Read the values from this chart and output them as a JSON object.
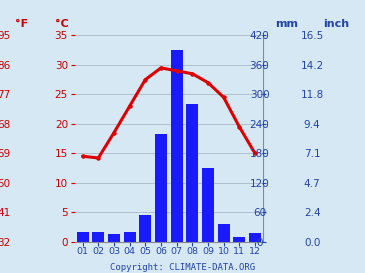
{
  "months": [
    "01",
    "02",
    "03",
    "04",
    "05",
    "06",
    "07",
    "08",
    "09",
    "10",
    "11",
    "12"
  ],
  "precip_mm": [
    20,
    20,
    15,
    20,
    55,
    220,
    390,
    280,
    150,
    35,
    10,
    18
  ],
  "temp_c": [
    14.5,
    14.2,
    18.5,
    23.0,
    27.5,
    29.5,
    29.0,
    28.5,
    27.0,
    24.5,
    19.5,
    15.0
  ],
  "bar_color": "#1a1aff",
  "line_color": "#dd0000",
  "temp_ticks_c": [
    0,
    5,
    10,
    15,
    20,
    25,
    30,
    35
  ],
  "temp_ticks_f": [
    32,
    41,
    50,
    59,
    68,
    77,
    86,
    95
  ],
  "precip_ticks_mm": [
    0,
    60,
    120,
    180,
    240,
    300,
    360,
    420
  ],
  "precip_ticks_inch": [
    "0.0",
    "2.4",
    "4.7",
    "7.1",
    "9.4",
    "11.8",
    "14.2",
    "16.5"
  ],
  "ylim_c": [
    0,
    35
  ],
  "ylim_mm": [
    0,
    420
  ],
  "label_f": "°F",
  "label_c": "°C",
  "label_mm": "mm",
  "label_inch": "inch",
  "copyright": "Copyright: CLIMATE-DATA.ORG",
  "bg_color": "#d5e8f3",
  "grid_color": "#b0bfd0",
  "red": "#cc0000",
  "blue": "#2244aa"
}
